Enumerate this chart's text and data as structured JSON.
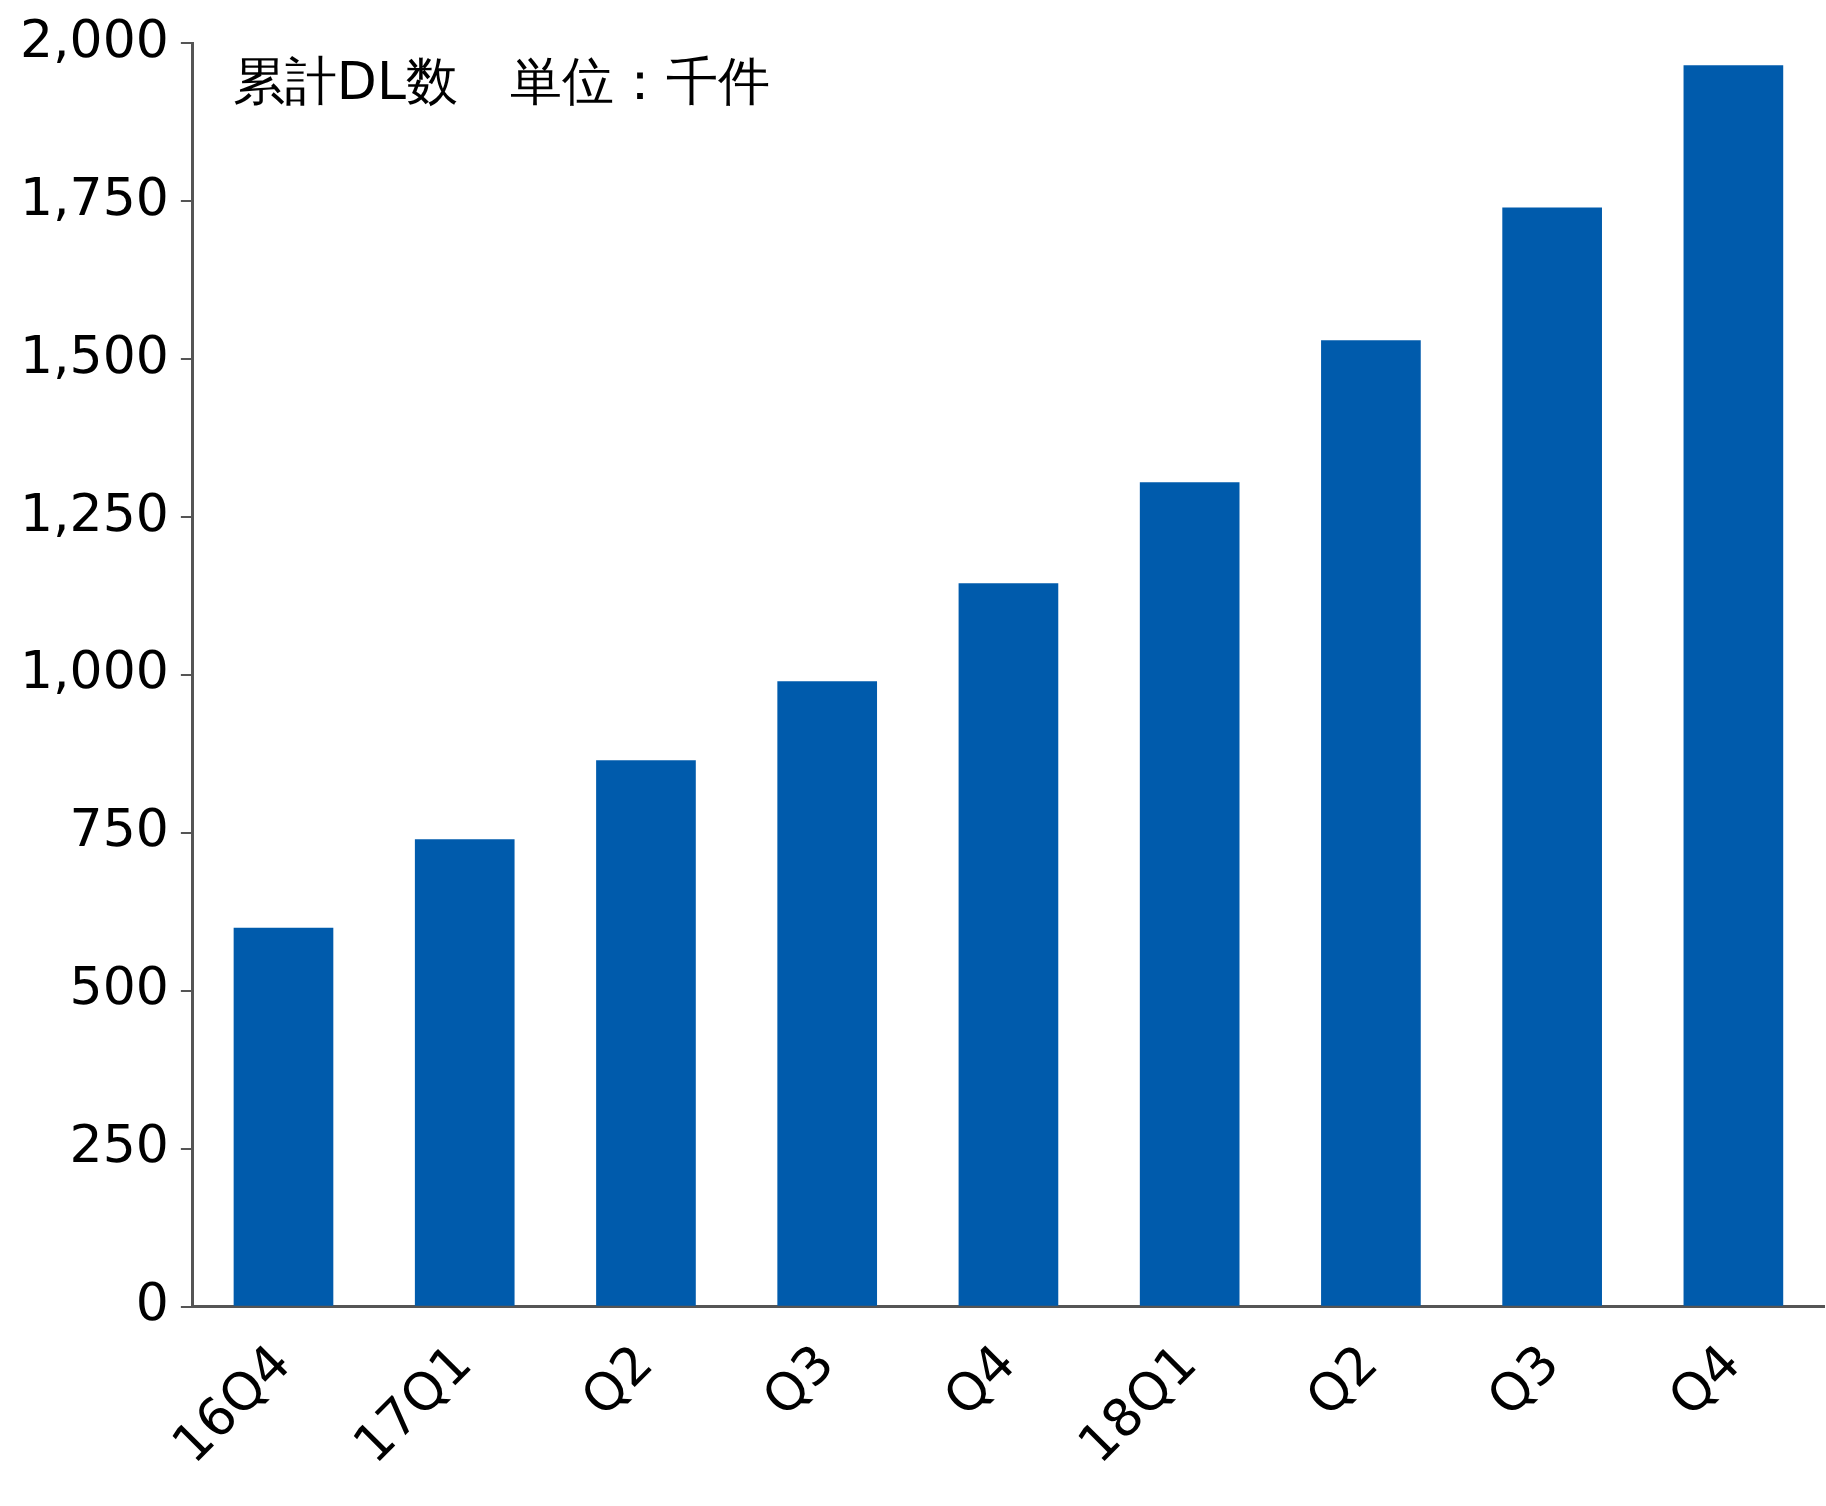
{
  "chart_data": {
    "type": "bar",
    "title": "累計DL数　単位：千件",
    "categories": [
      "16Q4",
      "17Q1",
      "Q2",
      "Q3",
      "Q4",
      "18Q1",
      "Q2",
      "Q3",
      "Q4"
    ],
    "values": [
      600,
      740,
      865,
      990,
      1145,
      1305,
      1530,
      1740,
      1965
    ],
    "color": "#005bac",
    "ylim": [
      0,
      2000
    ],
    "yticks": [
      0,
      250,
      500,
      750,
      {
        "value": 1000,
        "label": "1,000"
      },
      {
        "value": 1250,
        "label": "1,250"
      },
      {
        "value": 1500,
        "label": "1,500"
      },
      {
        "value": 1750,
        "label": "1,750"
      },
      {
        "value": 2000,
        "label": "2,000"
      }
    ],
    "grid": false,
    "legend": false
  }
}
